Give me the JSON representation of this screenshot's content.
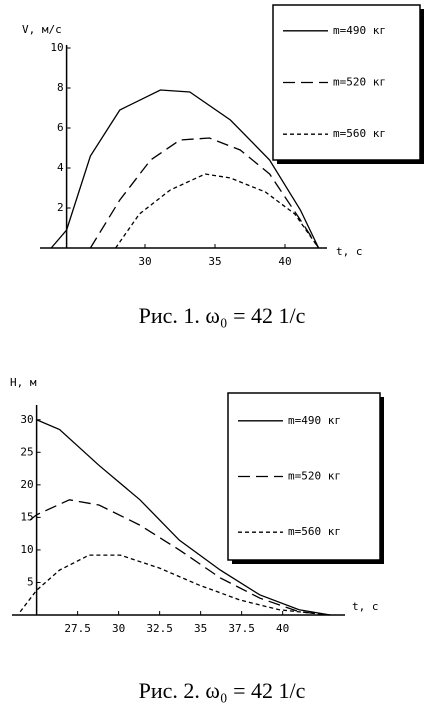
{
  "chart_data": [
    {
      "type": "line",
      "title": "Рис. 1. ω₀ = 42 1/c",
      "x_label": "t, с",
      "y_label": "V, м/с",
      "xlim": [
        22.5,
        43
      ],
      "ylim": [
        0,
        10
      ],
      "xticks": [
        30,
        35,
        40
      ],
      "yticks": [
        2,
        4,
        6,
        8,
        10
      ],
      "y_axis_crossing": 24.4,
      "series": [
        {
          "name": "m=490 кг",
          "color": "#000000",
          "dash": "solid",
          "x": [
            23.3,
            24.4,
            26.1,
            28.2,
            31.1,
            33.2,
            36.1,
            38.9,
            41.1,
            42.4
          ],
          "values": [
            0,
            0.9,
            4.6,
            6.9,
            7.9,
            7.8,
            6.4,
            4.4,
            1.9,
            0
          ]
        },
        {
          "name": "m=520 кг",
          "color": "#000000",
          "dash": "dashed",
          "x": [
            26.1,
            28.2,
            30.4,
            32.5,
            34.6,
            36.8,
            38.9,
            41.1,
            42.4
          ],
          "values": [
            0,
            2.4,
            4.4,
            5.4,
            5.5,
            4.9,
            3.7,
            1.4,
            0
          ]
        },
        {
          "name": "m=560 кг",
          "color": "#000000",
          "dash": "dotted",
          "x": [
            27.9,
            29.6,
            31.8,
            34.3,
            36.1,
            38.6,
            40.7,
            42.4
          ],
          "values": [
            0,
            1.7,
            2.9,
            3.7,
            3.5,
            2.8,
            1.7,
            0
          ]
        }
      ]
    },
    {
      "type": "line",
      "title": "Рис. 2. ω₀ = 42 1/c",
      "x_label": "t, с",
      "y_label": "H, м",
      "xlim": [
        23.5,
        43.8
      ],
      "ylim": [
        0,
        31.5
      ],
      "xticks": [
        27.5,
        30,
        32.5,
        35,
        37.5,
        40
      ],
      "yticks": [
        5,
        10,
        15,
        20,
        25,
        30
      ],
      "y_axis_crossing": 25,
      "series": [
        {
          "name": "m=490 кг",
          "color": "#000000",
          "dash": "solid",
          "x": [
            25,
            26.4,
            28.8,
            31.3,
            33.7,
            36.2,
            38.6,
            41.0,
            42.9
          ],
          "values": [
            30,
            28.5,
            23,
            17.7,
            11.5,
            6.9,
            3.1,
            0.8,
            0
          ]
        },
        {
          "name": "m=520 кг",
          "color": "#000000",
          "dash": "dashed",
          "x": [
            24.6,
            25,
            27.0,
            28.8,
            31.3,
            33.7,
            36.2,
            38.6,
            41.0,
            42.9
          ],
          "values": [
            14.6,
            15.4,
            17.7,
            16.9,
            13.8,
            10,
            5.7,
            2.6,
            0.5,
            0
          ]
        },
        {
          "name": "m=560 кг",
          "color": "#000000",
          "dash": "dotted",
          "x": [
            24.0,
            25,
            26.4,
            28.2,
            30.1,
            32.5,
            34.9,
            37.4,
            39.8,
            42.9
          ],
          "values": [
            0.5,
            3.8,
            6.9,
            9.2,
            9.2,
            7.2,
            4.6,
            2.3,
            0.8,
            0
          ]
        }
      ]
    }
  ]
}
